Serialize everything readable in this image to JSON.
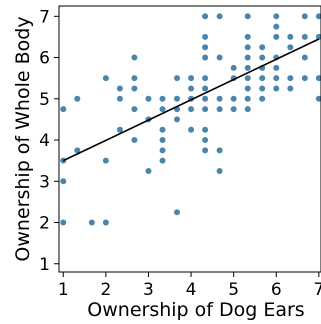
{
  "chart_data": {
    "type": "scatter",
    "xlabel": "Ownership of Dog Ears",
    "ylabel": "Ownership of Whole Body",
    "xlim": [
      0.9,
      7.05
    ],
    "ylim": [
      0.8,
      7.25
    ],
    "xticks": [
      1,
      2,
      3,
      4,
      5,
      6,
      7
    ],
    "yticks": [
      1,
      2,
      3,
      4,
      5,
      6,
      7
    ],
    "grid": false,
    "point_color": "#4a86ab",
    "line_color": "#000000",
    "fit_line": {
      "x": [
        1,
        7
      ],
      "y": [
        3.5,
        6.45
      ]
    },
    "points": [
      [
        1,
        2
      ],
      [
        1,
        3
      ],
      [
        1,
        3.5
      ],
      [
        1,
        4.75
      ],
      [
        1.33,
        5
      ],
      [
        1.33,
        3.75
      ],
      [
        1.67,
        2
      ],
      [
        2,
        2
      ],
      [
        2,
        3.5
      ],
      [
        2,
        5.5
      ],
      [
        2.33,
        4.25
      ],
      [
        2.33,
        5
      ],
      [
        2.33,
        5.25
      ],
      [
        2.67,
        4
      ],
      [
        2.67,
        4.75
      ],
      [
        2.67,
        5.25
      ],
      [
        2.67,
        5.5
      ],
      [
        2.67,
        6
      ],
      [
        3,
        3.25
      ],
      [
        3,
        4.5
      ],
      [
        3,
        5
      ],
      [
        3.33,
        3.5
      ],
      [
        3.33,
        3.75
      ],
      [
        3.33,
        4
      ],
      [
        3.33,
        4.25
      ],
      [
        3.33,
        4.75
      ],
      [
        3.33,
        5
      ],
      [
        3.67,
        2.25
      ],
      [
        3.67,
        4.5
      ],
      [
        3.67,
        4.75
      ],
      [
        3.67,
        5
      ],
      [
        3.67,
        5.5
      ],
      [
        4,
        4.25
      ],
      [
        4,
        4.75
      ],
      [
        4,
        5
      ],
      [
        4,
        5.25
      ],
      [
        4,
        5.5
      ],
      [
        4.33,
        3.75
      ],
      [
        4.33,
        4
      ],
      [
        4.33,
        4.25
      ],
      [
        4.33,
        4.75
      ],
      [
        4.33,
        5
      ],
      [
        4.33,
        5.25
      ],
      [
        4.33,
        5.5
      ],
      [
        4.33,
        6
      ],
      [
        4.33,
        6.25
      ],
      [
        4.33,
        6.5
      ],
      [
        4.33,
        7
      ],
      [
        4.67,
        3.25
      ],
      [
        4.67,
        3.75
      ],
      [
        4.67,
        4.75
      ],
      [
        4.67,
        5
      ],
      [
        4.67,
        6
      ],
      [
        4.67,
        7
      ],
      [
        5,
        4.75
      ],
      [
        5,
        5
      ],
      [
        5,
        5.5
      ],
      [
        5,
        5.75
      ],
      [
        5.33,
        4.75
      ],
      [
        5.33,
        5
      ],
      [
        5.33,
        5.25
      ],
      [
        5.33,
        5.5
      ],
      [
        5.33,
        5.75
      ],
      [
        5.33,
        6
      ],
      [
        5.33,
        6.25
      ],
      [
        5.33,
        6.5
      ],
      [
        5.33,
        7
      ],
      [
        5.67,
        5
      ],
      [
        5.67,
        5.25
      ],
      [
        5.67,
        5.5
      ],
      [
        5.67,
        5.75
      ],
      [
        5.67,
        6
      ],
      [
        5.67,
        6.25
      ],
      [
        6,
        5.25
      ],
      [
        6,
        5.5
      ],
      [
        6,
        5.75
      ],
      [
        6,
        6
      ],
      [
        6,
        6.5
      ],
      [
        6,
        6.75
      ],
      [
        6,
        7
      ],
      [
        6.33,
        5.25
      ],
      [
        6.33,
        5.5
      ],
      [
        6.33,
        6.25
      ],
      [
        6.33,
        6.5
      ],
      [
        6.67,
        5.5
      ],
      [
        6.67,
        6
      ],
      [
        6.67,
        6.5
      ],
      [
        6.67,
        7
      ],
      [
        7,
        5
      ],
      [
        7,
        5.5
      ],
      [
        7,
        6.5
      ],
      [
        7,
        7
      ]
    ]
  }
}
